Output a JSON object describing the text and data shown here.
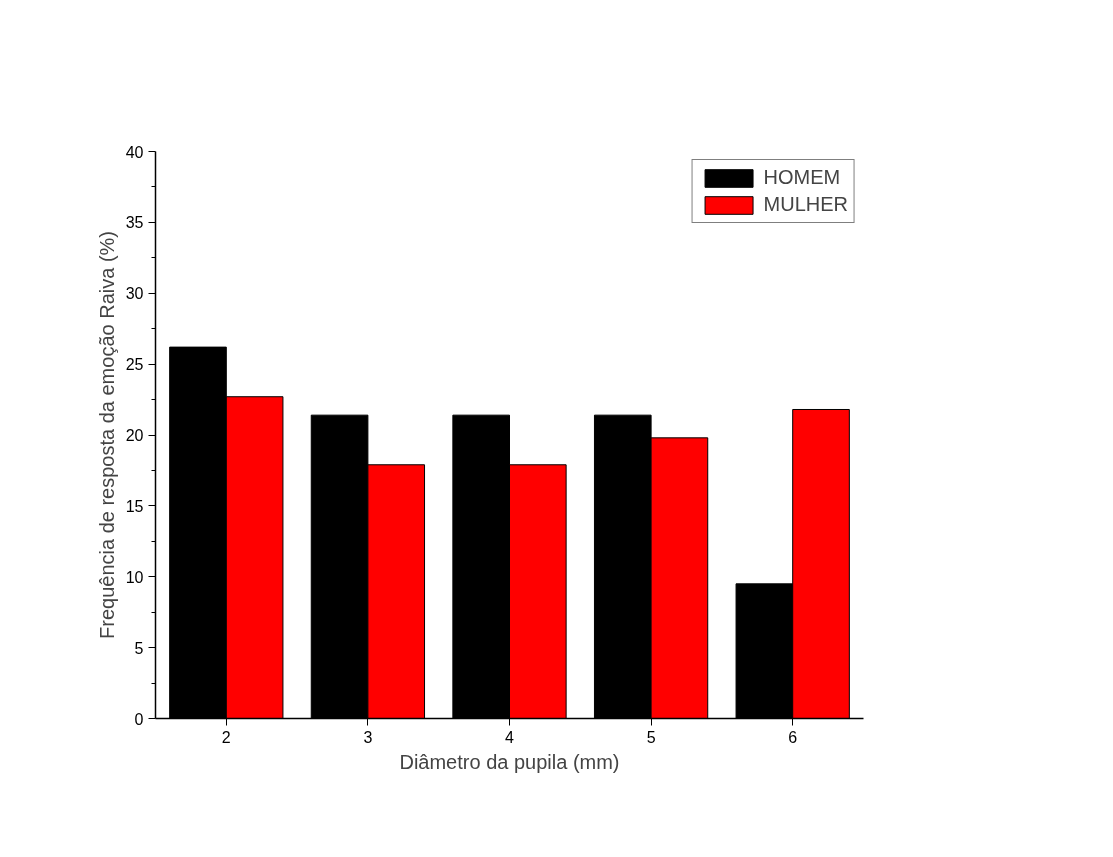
{
  "chart_data": {
    "type": "bar",
    "xlabel": "Diâmetro da pupila (mm)",
    "ylabel": "Frequência de resposta da emoção Raiva (%)",
    "categories": [
      "2",
      "3",
      "4",
      "5",
      "6"
    ],
    "series": [
      {
        "name": "HOMEM",
        "color": "#000000",
        "values": [
          26.2,
          21.4,
          21.4,
          21.4,
          9.5
        ]
      },
      {
        "name": "MULHER",
        "color": "#ff0000",
        "values": [
          22.7,
          17.9,
          17.9,
          19.8,
          21.8
        ]
      }
    ],
    "ylim": [
      0,
      40
    ],
    "yticks": [
      0,
      {
        "value": 2.5,
        "label": null
      },
      5,
      {
        "value": 7.5,
        "label": null
      },
      10,
      {
        "value": 12.5,
        "label": null
      },
      15,
      {
        "value": 17.5,
        "label": null
      },
      20,
      {
        "value": 22.5,
        "label": null
      },
      25,
      {
        "value": 27.5,
        "label": null
      },
      30,
      {
        "value": 32.5,
        "label": null
      },
      35,
      {
        "value": 37.5,
        "label": null
      },
      40
    ],
    "grid": false,
    "legend": "top right"
  }
}
